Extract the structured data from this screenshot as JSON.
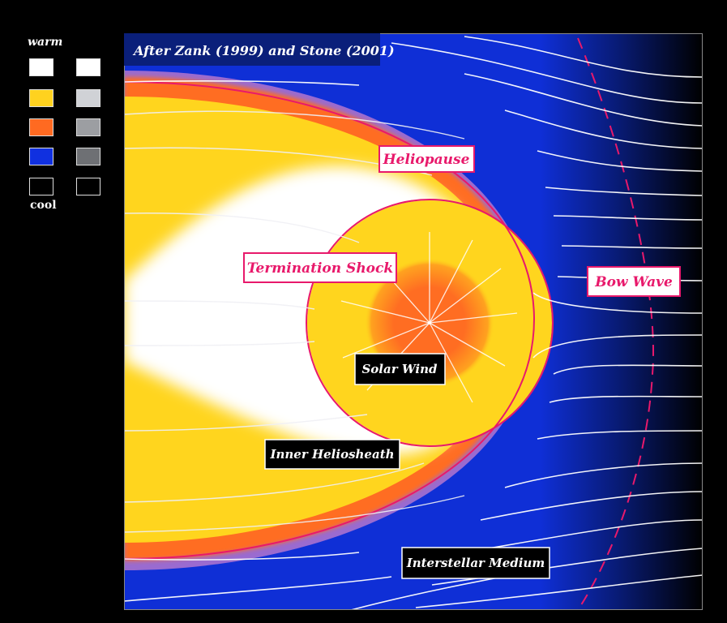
{
  "credit": "After Zank (1999) and Stone (2001)",
  "legend": {
    "warm_label": "warm",
    "cool_label": "cool",
    "color_column": [
      "#ffffff",
      "#ffd21f",
      "#ff6a21",
      "#1030e0",
      "#000000"
    ],
    "gray_column": [
      "#ffffff",
      "#d0d2d6",
      "#9c9ea2",
      "#6e7074",
      "#000000"
    ]
  },
  "labels": {
    "heliopause": "Heliopause",
    "termination_shock": "Termination Shock",
    "bow_wave": "Bow Wave",
    "solar_wind": "Solar Wind",
    "inner_heliosheath": "Inner Heliosheath",
    "interstellar_medium": "Interstellar Medium"
  },
  "colors": {
    "interstellar": "#0f2fd6",
    "heliosheath": "#ffd51e",
    "hot_core": "#ff6d22",
    "boundary_line": "#e8196b",
    "streamline": "#ffffff"
  }
}
